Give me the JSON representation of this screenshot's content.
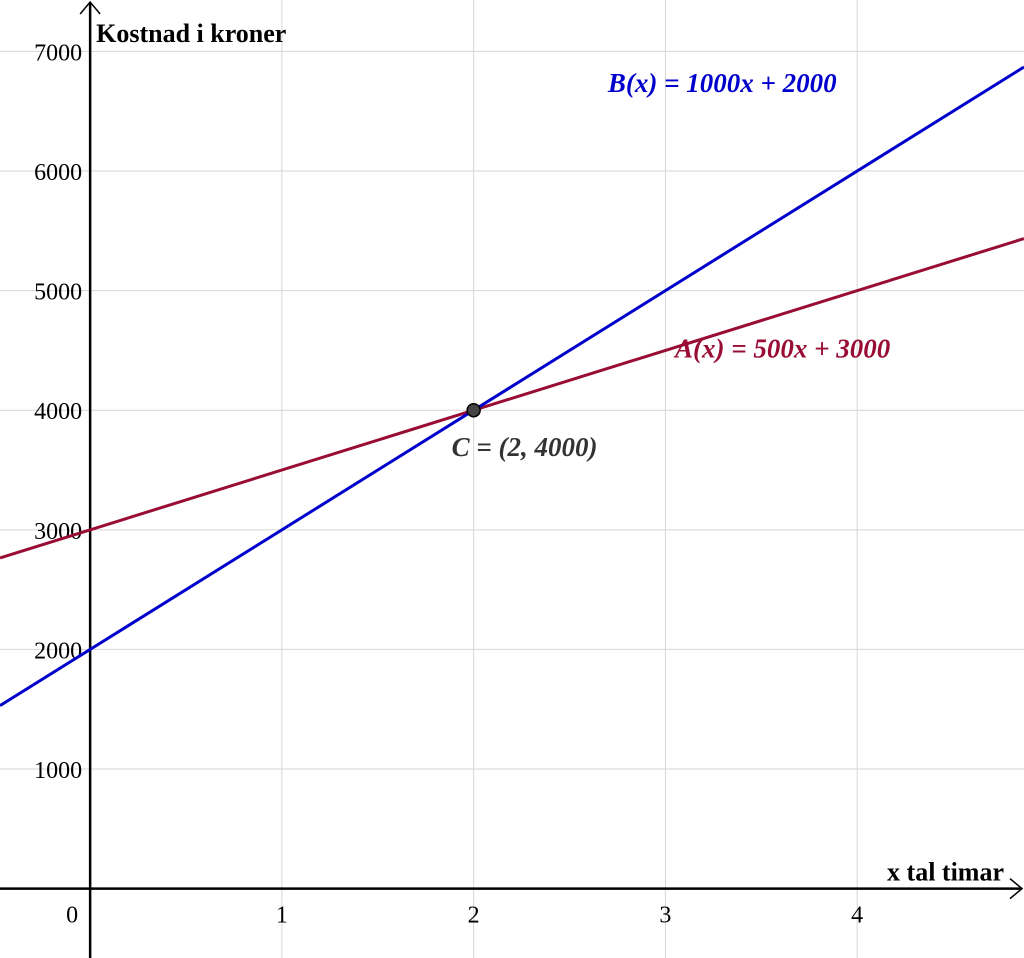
{
  "chart_data": {
    "type": "line",
    "xlabel": "x tal timar",
    "ylabel": "Kostnad i kroner",
    "origin_label": "0",
    "xlim": [
      -0.47,
      4.87
    ],
    "ylim": [
      -580,
      7430
    ],
    "x_ticks": [
      1,
      2,
      3,
      4
    ],
    "y_ticks": [
      1000,
      2000,
      3000,
      4000,
      5000,
      6000,
      7000
    ],
    "x_tick_labels": [
      "1",
      "2",
      "3",
      "4"
    ],
    "y_tick_labels": [
      "1000",
      "2000",
      "3000",
      "4000",
      "5000",
      "6000",
      "7000"
    ],
    "grid": true,
    "series": [
      {
        "name": "A(x) = 500x + 3000",
        "slope": 500,
        "intercept": 3000,
        "color": "#990d35"
      },
      {
        "name": "B(x) = 1000x + 2000",
        "slope": 1000,
        "intercept": 2000,
        "color": "#0000cc"
      }
    ],
    "points": [
      {
        "label": "C = (2, 4000)",
        "x": 2,
        "y": 4000,
        "color": "#444444"
      }
    ]
  }
}
